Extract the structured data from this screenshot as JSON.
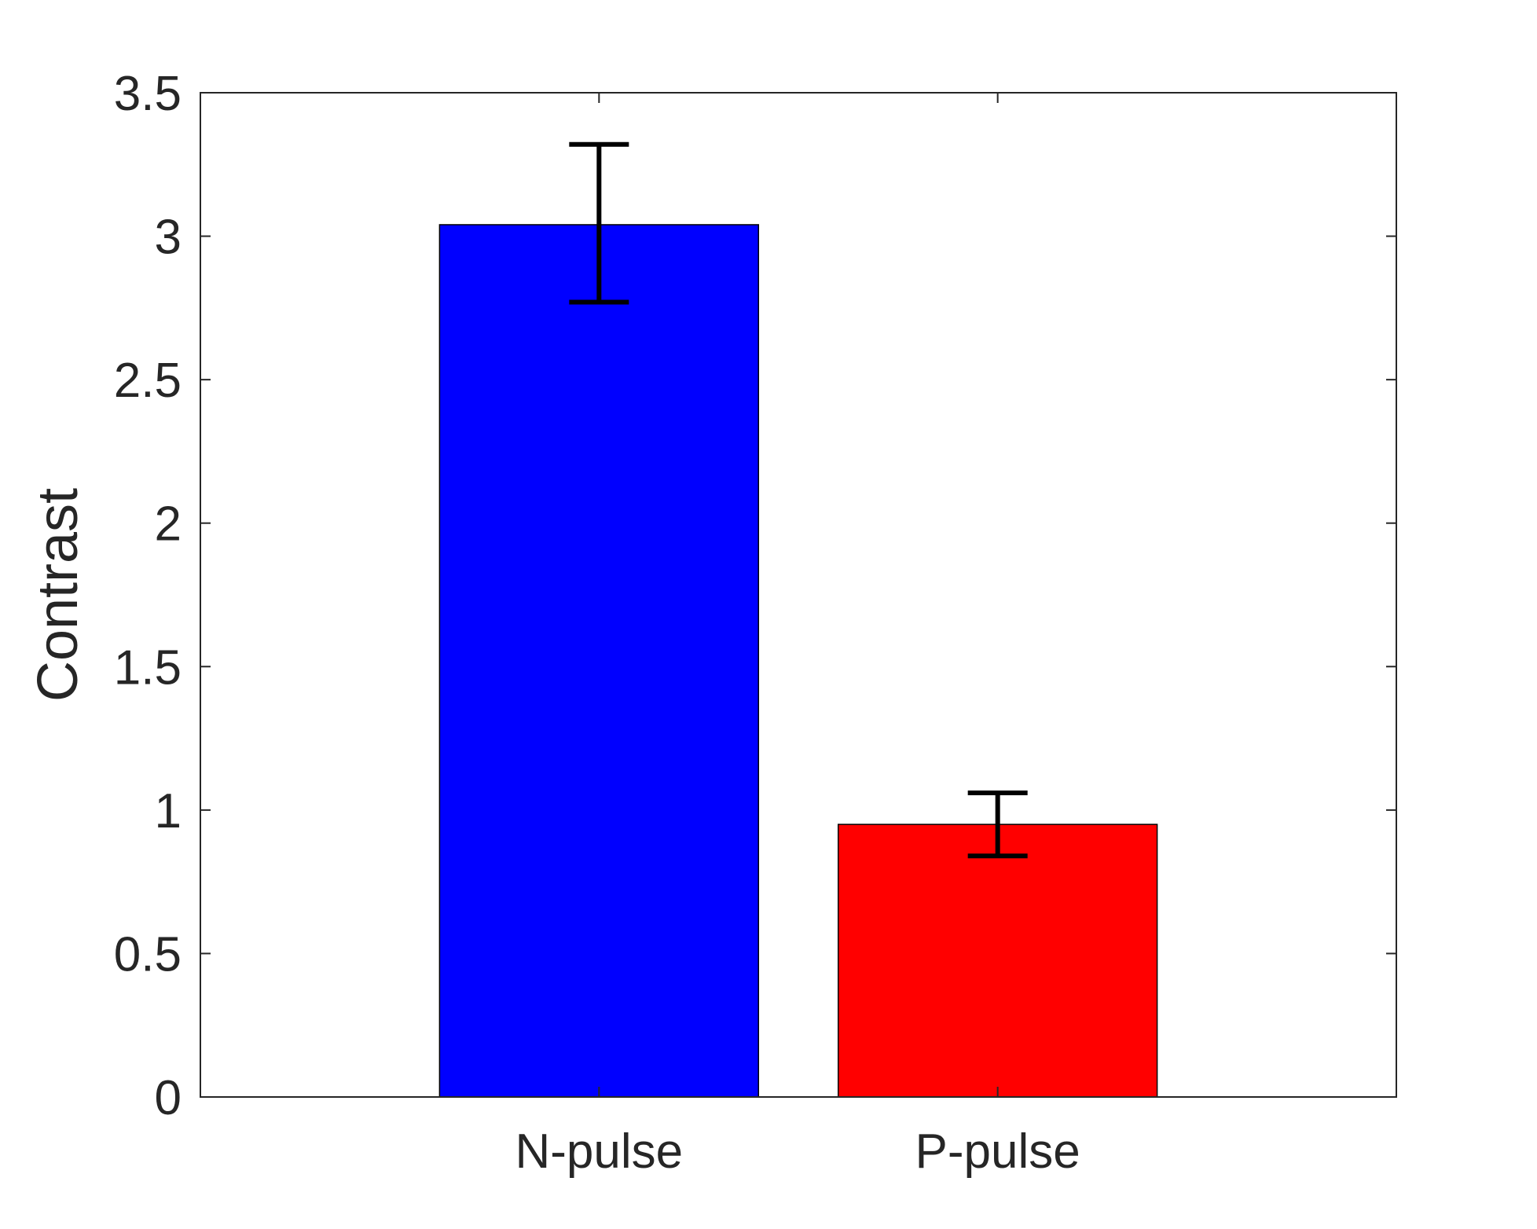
{
  "chart_data": {
    "type": "bar",
    "title": "",
    "xlabel": "",
    "ylabel": "Contrast",
    "categories": [
      "N-pulse",
      "P-pulse"
    ],
    "values": [
      3.04,
      0.95
    ],
    "error_bars": [
      {
        "lower": 2.77,
        "upper": 3.32
      },
      {
        "lower": 0.84,
        "upper": 1.06
      }
    ],
    "colors": [
      "#0000ff",
      "#ff0000"
    ],
    "ylim": [
      0,
      3.5
    ],
    "yticks": [
      0,
      0.5,
      1,
      1.5,
      2,
      2.5,
      3,
      3.5
    ],
    "ytick_labels": [
      "0",
      "0.5",
      "1",
      "1.5",
      "2",
      "2.5",
      "3",
      "3.5"
    ],
    "grid": false,
    "legend": false
  }
}
